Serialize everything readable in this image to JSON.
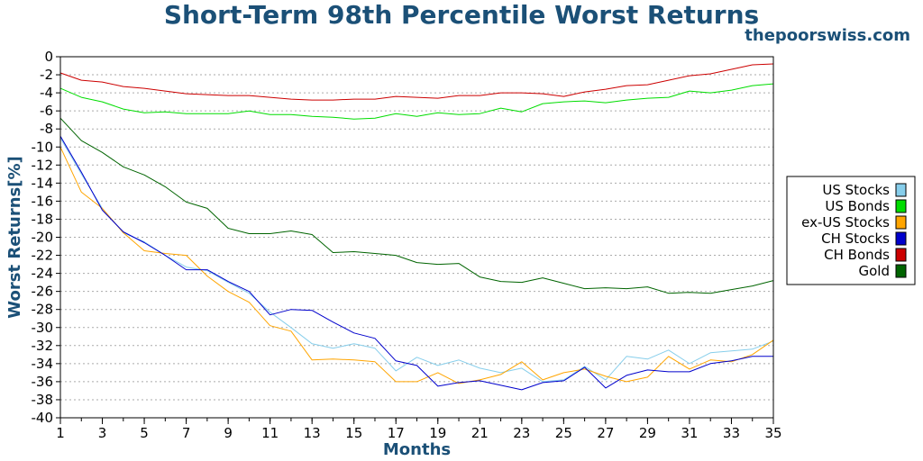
{
  "chart_data": {
    "type": "line",
    "title": "Short-Term 98th Percentile Worst Returns",
    "watermark": "thepoorswiss.com",
    "xlabel": "Months",
    "ylabel": "Worst Returns[%]",
    "xlim": [
      1,
      35
    ],
    "ylim": [
      -40,
      0
    ],
    "xticks": [
      "1",
      "3",
      "5",
      "7",
      "9",
      "11",
      "13",
      "15",
      "17",
      "19",
      "21",
      "23",
      "25",
      "27",
      "29",
      "31",
      "33",
      "35"
    ],
    "yticks": [
      "0",
      "-2",
      "-4",
      "-6",
      "-8",
      "-10",
      "-12",
      "-14",
      "-16",
      "-18",
      "-20",
      "-22",
      "-24",
      "-26",
      "-28",
      "-30",
      "-32",
      "-34",
      "-36",
      "-38",
      "-40"
    ],
    "grid": true,
    "legend_position": "right",
    "x": [
      1,
      2,
      3,
      4,
      5,
      6,
      7,
      8,
      9,
      10,
      11,
      12,
      13,
      14,
      15,
      16,
      17,
      18,
      19,
      20,
      21,
      22,
      23,
      24,
      25,
      26,
      27,
      28,
      29,
      30,
      31,
      32,
      33,
      34,
      35
    ],
    "series": [
      {
        "name": "US Stocks",
        "color": "#87ceeb",
        "values": [
          -9.0,
          -13.0,
          -16.8,
          -19.5,
          -20.5,
          -22.0,
          -23.3,
          -23.7,
          -25.0,
          -26.2,
          -28.3,
          -30.0,
          -31.8,
          -32.3,
          -31.8,
          -32.3,
          -34.8,
          -33.3,
          -34.2,
          -33.6,
          -34.5,
          -35.0,
          -34.5,
          -36.0,
          -35.8,
          -34.3,
          -35.8,
          -33.2,
          -33.5,
          -32.5,
          -34.0,
          -32.8,
          -32.6,
          -32.4,
          -31.5
        ]
      },
      {
        "name": "US Bonds",
        "color": "#00dd00",
        "values": [
          -3.5,
          -4.5,
          -5.0,
          -5.8,
          -6.2,
          -6.1,
          -6.3,
          -6.3,
          -6.3,
          -6.0,
          -6.4,
          -6.4,
          -6.6,
          -6.7,
          -6.9,
          -6.8,
          -6.3,
          -6.6,
          -6.2,
          -6.4,
          -6.3,
          -5.7,
          -6.1,
          -5.2,
          -5.0,
          -4.9,
          -5.1,
          -4.8,
          -4.6,
          -4.5,
          -3.8,
          -4.0,
          -3.7,
          -3.2,
          -3.0
        ]
      },
      {
        "name": "ex-US Stocks",
        "color": "#ffa500",
        "values": [
          -10.0,
          -15.0,
          -16.8,
          -19.5,
          -21.5,
          -21.8,
          -22.0,
          -24.3,
          -26.0,
          -27.2,
          -29.8,
          -30.4,
          -33.6,
          -33.5,
          -33.6,
          -33.8,
          -36.0,
          -36.0,
          -35.0,
          -36.2,
          -35.8,
          -35.2,
          -33.8,
          -35.8,
          -35.0,
          -34.6,
          -35.4,
          -36.0,
          -35.5,
          -33.2,
          -34.6,
          -33.6,
          -33.8,
          -33.0,
          -31.4
        ]
      },
      {
        "name": "CH Stocks",
        "color": "#0000cc",
        "values": [
          -8.8,
          -12.8,
          -17.0,
          -19.4,
          -20.6,
          -22.0,
          -23.6,
          -23.6,
          -24.9,
          -26.0,
          -28.6,
          -28.0,
          -28.1,
          -29.4,
          -30.6,
          -31.2,
          -33.7,
          -34.2,
          -36.5,
          -36.1,
          -35.9,
          -36.4,
          -36.9,
          -36.1,
          -35.9,
          -34.4,
          -36.7,
          -35.3,
          -34.7,
          -34.9,
          -34.9,
          -34.0,
          -33.7,
          -33.2,
          -33.2
        ]
      },
      {
        "name": "CH Bonds",
        "color": "#cc0000",
        "values": [
          -1.8,
          -2.6,
          -2.8,
          -3.3,
          -3.5,
          -3.8,
          -4.1,
          -4.2,
          -4.3,
          -4.3,
          -4.5,
          -4.7,
          -4.8,
          -4.8,
          -4.7,
          -4.7,
          -4.4,
          -4.5,
          -4.6,
          -4.3,
          -4.3,
          -4.0,
          -4.0,
          -4.1,
          -4.4,
          -3.9,
          -3.6,
          -3.2,
          -3.1,
          -2.6,
          -2.1,
          -1.9,
          -1.4,
          -0.9,
          -0.8
        ]
      },
      {
        "name": "Gold",
        "color": "#006400",
        "values": [
          -6.8,
          -9.3,
          -10.6,
          -12.2,
          -13.1,
          -14.4,
          -16.1,
          -16.8,
          -19.0,
          -19.6,
          -19.6,
          -19.3,
          -19.7,
          -21.7,
          -21.6,
          -21.8,
          -22.0,
          -22.8,
          -23.0,
          -22.9,
          -24.4,
          -24.9,
          -25.0,
          -24.5,
          -25.1,
          -25.7,
          -25.6,
          -25.7,
          -25.5,
          -26.2,
          -26.1,
          -26.2,
          -25.8,
          -25.4,
          -24.8
        ]
      }
    ]
  }
}
